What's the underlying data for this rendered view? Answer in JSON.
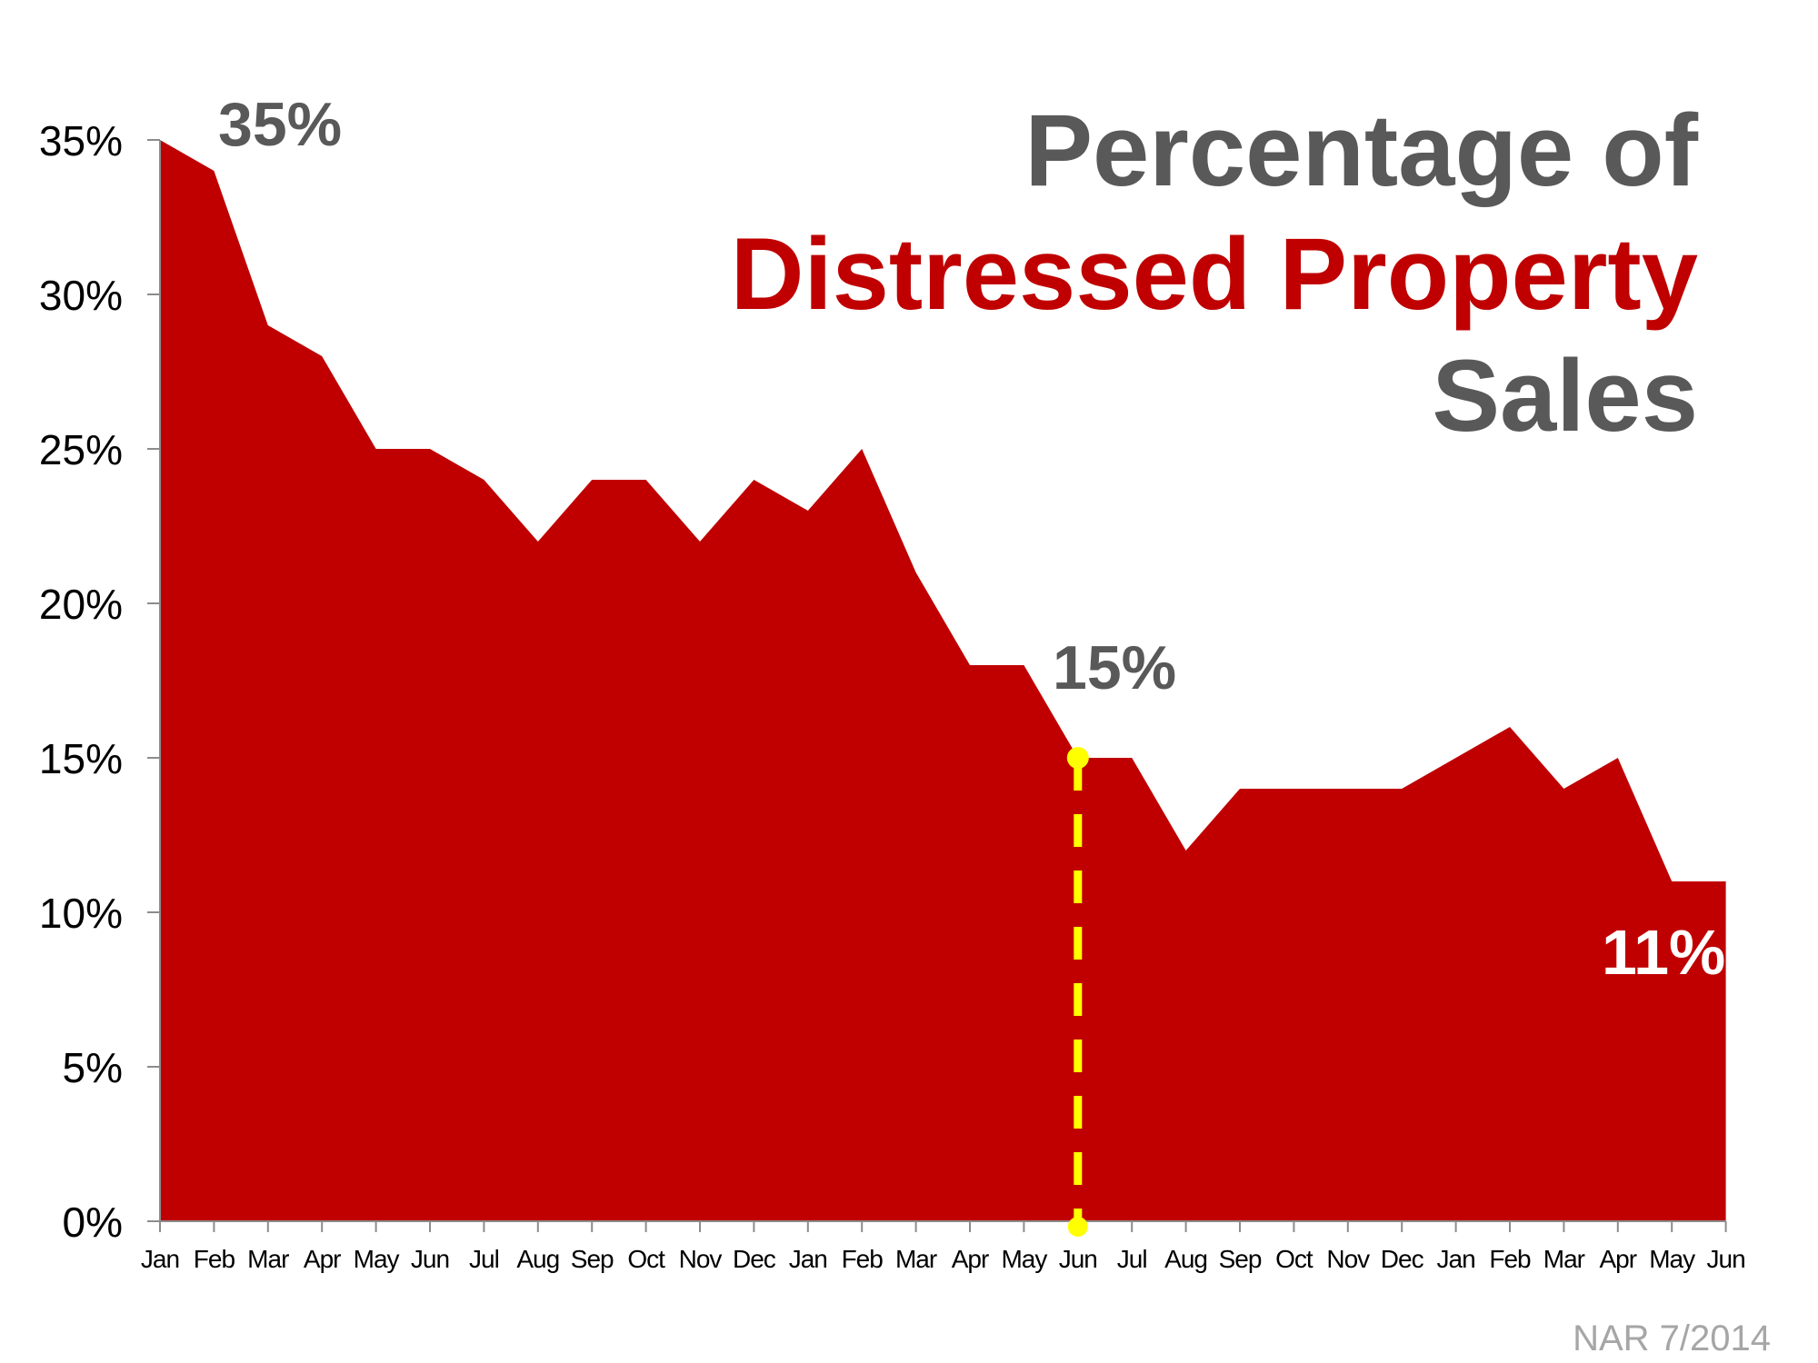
{
  "chart_data": {
    "type": "area",
    "title_lines": [
      "Percentage of",
      "Distressed Property",
      "Sales"
    ],
    "categories": [
      "Jan",
      "Feb",
      "Mar",
      "Apr",
      "May",
      "Jun",
      "Jul",
      "Aug",
      "Sep",
      "Oct",
      "Nov",
      "Dec",
      "Jan",
      "Feb",
      "Mar",
      "Apr",
      "May",
      "Jun",
      "Jul",
      "Aug",
      "Sep",
      "Oct",
      "Nov",
      "Dec",
      "Jan",
      "Feb",
      "Mar",
      "Apr",
      "May",
      "Jun"
    ],
    "values": [
      35,
      34,
      29,
      28,
      25,
      25,
      24,
      22,
      24,
      24,
      22,
      24,
      23,
      25,
      21,
      18,
      18,
      15,
      15,
      12,
      14,
      14,
      14,
      14,
      15,
      16,
      14,
      15,
      11,
      11
    ],
    "ylim": [
      0,
      35
    ],
    "yticks": [
      "0%",
      "5%",
      "10%",
      "15%",
      "20%",
      "25%",
      "30%",
      "35%"
    ],
    "ytick_values": [
      0,
      5,
      10,
      15,
      20,
      25,
      30,
      35
    ],
    "xlabel": "",
    "ylabel": "",
    "grid": false,
    "annotations": {
      "start": {
        "text": "35%",
        "index": 0
      },
      "marker": {
        "text": "15%",
        "index": 17
      },
      "end": {
        "text": "11%",
        "index": 29
      }
    },
    "source": "NAR 7/2014",
    "colors": {
      "fill": "#c00000",
      "title_gray": "#595959",
      "title_red": "#c00000",
      "marker": "#ffff00",
      "source": "#a6a6a6"
    }
  }
}
